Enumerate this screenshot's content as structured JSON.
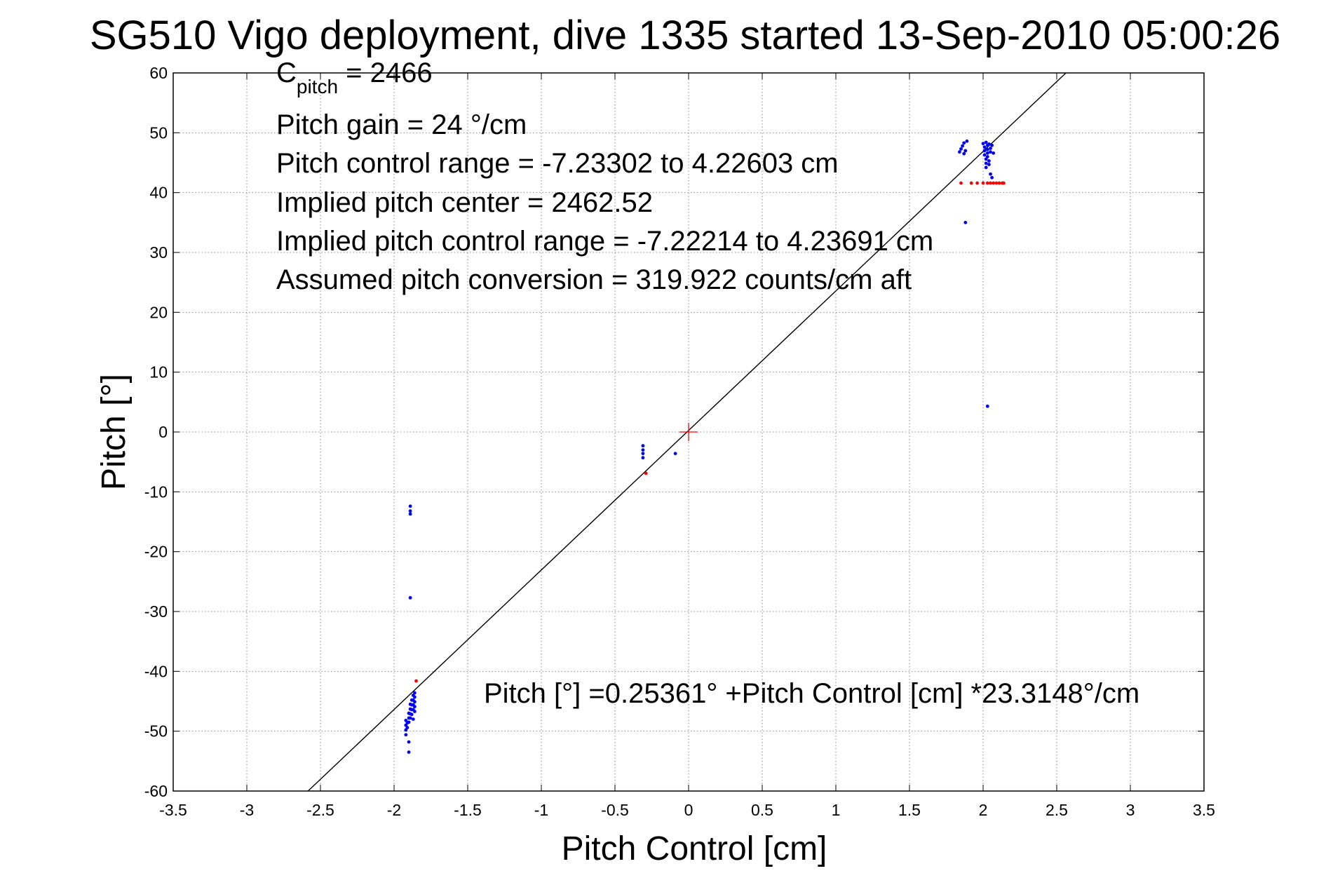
{
  "chart_data": {
    "type": "scatter",
    "title": "SG510 Vigo deployment, dive 1335 started 13-Sep-2010 05:00:26",
    "xlabel": "Pitch Control [cm]",
    "ylabel": "Pitch [°]",
    "xlim": [
      -3.5,
      3.5
    ],
    "ylim": [
      -60,
      60
    ],
    "xticks": [
      -3.5,
      -3,
      -2.5,
      -2,
      -1.5,
      -1,
      -0.5,
      0,
      0.5,
      1,
      1.5,
      2,
      2.5,
      3,
      3.5
    ],
    "yticks": [
      -60,
      -50,
      -40,
      -30,
      -20,
      -10,
      0,
      10,
      20,
      30,
      40,
      50,
      60
    ],
    "xtick_labels": [
      "-3.5",
      "-3",
      "-2.5",
      "-2",
      "-1.5",
      "-1",
      "-0.5",
      "0",
      "0.5",
      "1",
      "1.5",
      "2",
      "2.5",
      "3",
      "3.5"
    ],
    "ytick_labels": [
      "-60",
      "-50",
      "-40",
      "-30",
      "-20",
      "-10",
      "0",
      "10",
      "20",
      "30",
      "40",
      "50",
      "60"
    ],
    "grid": true,
    "colors": {
      "blue": "#0000ff",
      "red": "#ff0000",
      "line": "#000000"
    },
    "annotations": {
      "cpitch_symbol": "C",
      "cpitch_sub": "pitch",
      "cpitch_value": " = 2466",
      "line2": "Pitch gain = 24 °/cm",
      "line3": "Pitch control range = -7.23302 to 4.22603 cm",
      "line4": "Implied pitch center = 2462.52",
      "line5": "Implied pitch control range = -7.22214 to 4.23691 cm",
      "line6": "Assumed pitch conversion = 319.922 counts/cm aft",
      "fit_equation": "Pitch [°] =0.25361° +Pitch Control [cm] *23.3148°/cm"
    },
    "fit_line": {
      "intercept": 0.25361,
      "slope": 23.3148
    },
    "center_marker": {
      "x": 0,
      "y": 0
    },
    "series": [
      {
        "color": "blue",
        "points": [
          [
            1.84,
            46.8
          ],
          [
            1.85,
            47.3
          ],
          [
            1.86,
            47.8
          ],
          [
            1.87,
            46.5
          ],
          [
            1.87,
            48.3
          ],
          [
            1.88,
            47.0
          ],
          [
            1.89,
            48.6
          ],
          [
            2.0,
            48.2
          ],
          [
            2.01,
            47.6
          ],
          [
            2.01,
            47.0
          ],
          [
            2.01,
            46.3
          ],
          [
            2.02,
            45.6
          ],
          [
            2.02,
            44.9
          ],
          [
            2.02,
            44.2
          ],
          [
            2.02,
            48.4
          ],
          [
            2.03,
            47.9
          ],
          [
            2.03,
            47.2
          ],
          [
            2.03,
            46.6
          ],
          [
            2.03,
            46.0
          ],
          [
            2.04,
            45.3
          ],
          [
            2.04,
            44.7
          ],
          [
            2.04,
            48.1
          ],
          [
            2.05,
            47.4
          ],
          [
            2.05,
            46.8
          ],
          [
            2.05,
            43.1
          ],
          [
            2.06,
            47.9
          ],
          [
            2.06,
            42.5
          ],
          [
            2.07,
            46.6
          ],
          [
            1.88,
            35.0
          ],
          [
            2.03,
            4.3
          ],
          [
            -0.31,
            -2.3
          ],
          [
            -0.31,
            -3.0
          ],
          [
            -0.31,
            -3.6
          ],
          [
            -0.31,
            -4.3
          ],
          [
            -0.09,
            -3.6
          ],
          [
            -1.89,
            -12.4
          ],
          [
            -1.89,
            -13.2
          ],
          [
            -1.89,
            -13.7
          ],
          [
            -1.89,
            -27.7
          ],
          [
            -1.92,
            -48.2
          ],
          [
            -1.92,
            -49.0
          ],
          [
            -1.92,
            -49.8
          ],
          [
            -1.92,
            -50.6
          ],
          [
            -1.91,
            -48.6
          ],
          [
            -1.91,
            -49.4
          ],
          [
            -1.9,
            -47.0
          ],
          [
            -1.9,
            -47.8
          ],
          [
            -1.9,
            -48.5
          ],
          [
            -1.9,
            -51.8
          ],
          [
            -1.9,
            -53.5
          ],
          [
            -1.89,
            -45.5
          ],
          [
            -1.89,
            -46.3
          ],
          [
            -1.89,
            -47.1
          ],
          [
            -1.89,
            -47.8
          ],
          [
            -1.88,
            -44.8
          ],
          [
            -1.88,
            -45.6
          ],
          [
            -1.88,
            -46.4
          ],
          [
            -1.88,
            -47.2
          ],
          [
            -1.87,
            -44.0
          ],
          [
            -1.87,
            -44.8
          ],
          [
            -1.87,
            -45.6
          ],
          [
            -1.87,
            -46.4
          ],
          [
            -1.87,
            -48.0
          ],
          [
            -1.86,
            -44.3
          ],
          [
            -1.86,
            -45.1
          ],
          [
            -1.86,
            -45.9
          ],
          [
            -1.86,
            -43.6
          ],
          [
            -1.86,
            -46.7
          ]
        ]
      },
      {
        "color": "red",
        "points": [
          [
            1.85,
            41.6
          ],
          [
            1.92,
            41.6
          ],
          [
            1.96,
            41.6
          ],
          [
            2.0,
            41.6
          ],
          [
            2.03,
            41.6
          ],
          [
            2.05,
            41.6
          ],
          [
            2.07,
            41.6
          ],
          [
            2.09,
            41.6
          ],
          [
            2.11,
            41.6
          ],
          [
            2.13,
            41.6
          ],
          [
            2.14,
            41.6
          ],
          [
            -0.29,
            -6.9
          ],
          [
            -1.85,
            -41.6
          ]
        ]
      }
    ]
  }
}
